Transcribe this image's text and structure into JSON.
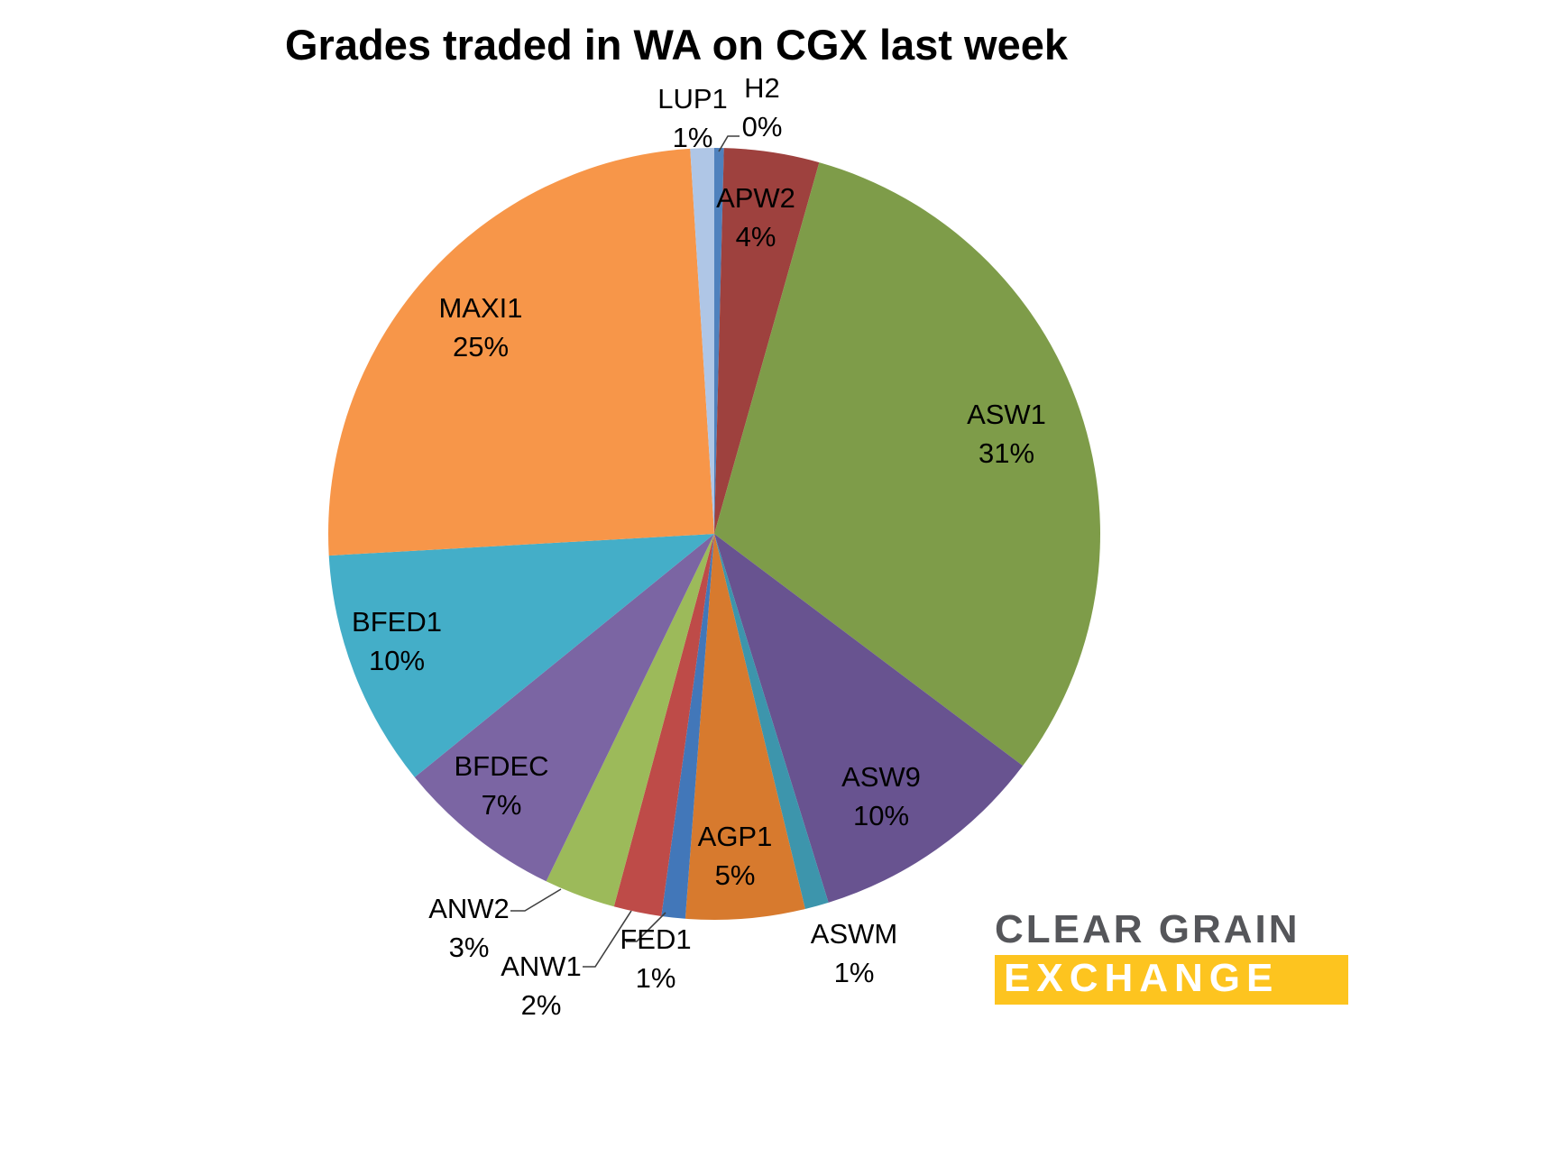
{
  "title": "Grades traded in WA on CGX last week",
  "chart_data": {
    "type": "pie",
    "title": "Grades traded in WA on CGX last week",
    "direction": "clockwise",
    "start_angle_deg": 0,
    "legend": "none",
    "label_style": "name and percent on slice or outside with leader line",
    "min_slice_percent_for_render": 0.4,
    "slices": [
      {
        "label": "H2",
        "percent_label": "0%",
        "value": 0,
        "color": "#4F81BD",
        "label_placement": "outside"
      },
      {
        "label": "APW2",
        "percent_label": "4%",
        "value": 4,
        "color": "#9E413E",
        "label_placement": "inside"
      },
      {
        "label": "ASW1",
        "percent_label": "31%",
        "value": 31,
        "color": "#7E9C49",
        "label_placement": "inside"
      },
      {
        "label": "ASW9",
        "percent_label": "10%",
        "value": 10,
        "color": "#685390",
        "label_placement": "inside"
      },
      {
        "label": "ASWM",
        "percent_label": "1%",
        "value": 1,
        "color": "#3D95AC",
        "label_placement": "outside"
      },
      {
        "label": "AGP1",
        "percent_label": "5%",
        "value": 5,
        "color": "#D77A2E",
        "label_placement": "inside"
      },
      {
        "label": "FED1",
        "percent_label": "1%",
        "value": 1,
        "color": "#4277B9",
        "label_placement": "outside"
      },
      {
        "label": "ANW1",
        "percent_label": "2%",
        "value": 2,
        "color": "#BE4B48",
        "label_placement": "outside"
      },
      {
        "label": "ANW2",
        "percent_label": "3%",
        "value": 3,
        "color": "#9CBA5A",
        "label_placement": "outside"
      },
      {
        "label": "BFDEC",
        "percent_label": "7%",
        "value": 7,
        "color": "#7B65A3",
        "label_placement": "inside"
      },
      {
        "label": "BFED1",
        "percent_label": "10%",
        "value": 10,
        "color": "#44AEC8",
        "label_placement": "inside"
      },
      {
        "label": "MAXI1",
        "percent_label": "25%",
        "value": 25,
        "color": "#F79649",
        "label_placement": "inside"
      },
      {
        "label": "LUP1",
        "percent_label": "1%",
        "value": 1,
        "color": "#AFC6E6",
        "label_placement": "outside"
      }
    ]
  },
  "logo": {
    "line1": "CLEAR GRAIN",
    "line2": "EXCHANGE",
    "text_color": "#55565A",
    "bar_color": "#FDC41F"
  }
}
